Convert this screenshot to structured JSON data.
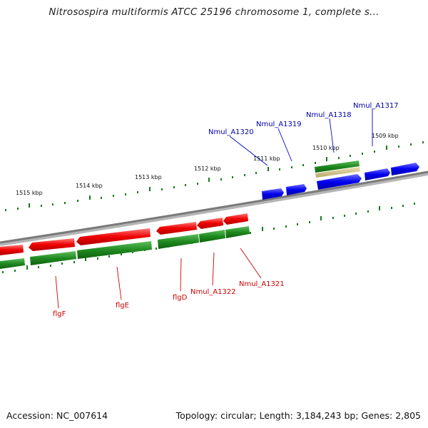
{
  "title": "Nitrosospira multiformis ATCC 25196 chromosome 1, complete s...",
  "accession": "Accession: NC_007614",
  "topology": "Topology: circular; Length: 3,184,243 bp; Genes: 2,805",
  "colors": {
    "forward_gene": "#0000dd",
    "reverse_gene": "#ee0000",
    "cds_track": "#1f8a1f",
    "backbone": "#8a8a8a",
    "label_blue": "#0000aa",
    "label_red": "#cc0000"
  },
  "ruler_labels": [
    "1515 kbp",
    "1514 kbp",
    "1513 kbp",
    "1512 kbp",
    "1511 kbp",
    "1510 kbp",
    "1509 kbp"
  ],
  "gene_labels": {
    "Nmul_A1317": "Nmul_A1317",
    "Nmul_A1318": "Nmul_A1318",
    "Nmul_A1319": "Nmul_A1319",
    "Nmul_A1320": "Nmul_A1320",
    "flgF": "flgF",
    "flgE": "flgE",
    "flgD": "flgD",
    "Nmul_A1322": "Nmul_A1322",
    "Nmul_A1321": "Nmul_A1321"
  }
}
